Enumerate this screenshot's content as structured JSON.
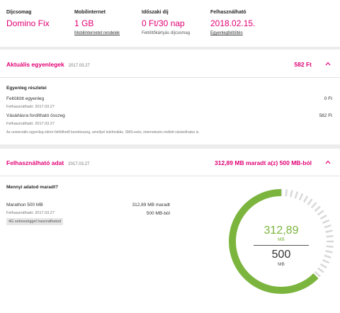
{
  "summary": {
    "plan": {
      "label": "Díjcsomag",
      "value": "Domino Fix"
    },
    "mobile_internet": {
      "label": "Mobilinternet",
      "value": "1 GB",
      "link": "Mobilinternetet rendelek"
    },
    "timed_fee": {
      "label": "Időszaki díj",
      "value": "0 Ft/30 nap",
      "sub": "Feltöltőkártyás díjcsomag"
    },
    "usable": {
      "label": "Felhasználható",
      "value": "2018.02.15.",
      "link": "Egyenlegfeltöltés"
    }
  },
  "balance": {
    "title": "Aktuális egyenlegek",
    "date": "2017.03.27",
    "amount": "582 Ft",
    "details_title": "Egyenleg részletei",
    "rows": [
      {
        "label": "Feltöltött egyenleg",
        "sub": "Felhasználható: 2017.03.27",
        "value": "0 Ft"
      },
      {
        "label": "Vásárlásra fordítható összeg",
        "sub": "Felhasználható: 2017.03.27",
        "value": "582 Ft"
      }
    ],
    "note": "Az univerzális egyenleg elérre feltölthető keretösszeg, amellyel telefonálás, SMS-ezés, internetezés mellett vásárolhatsz is."
  },
  "data": {
    "title": "Felhasználható adat",
    "date": "2017.03.27",
    "amount": "312,89 MB maradt a(z) 500 MB-ból",
    "question": "Mennyi adatod maradt?",
    "item_label": "Marathon 500 MB",
    "item_remaining": "312,89 MB maradt",
    "item_sub": "Felhasználható: 2017.03.27",
    "item_total": "500 MB-ból",
    "tag": "4G sebességgel használhatod",
    "gauge": {
      "remaining": "312,89",
      "remaining_unit": "MB",
      "total": "500",
      "total_unit": "MB",
      "remaining_value": 312.89,
      "total_value": 500,
      "color_remaining": "#7cb53e",
      "color_rest": "#d9d9d9"
    }
  },
  "colors": {
    "accent": "#e20074"
  }
}
